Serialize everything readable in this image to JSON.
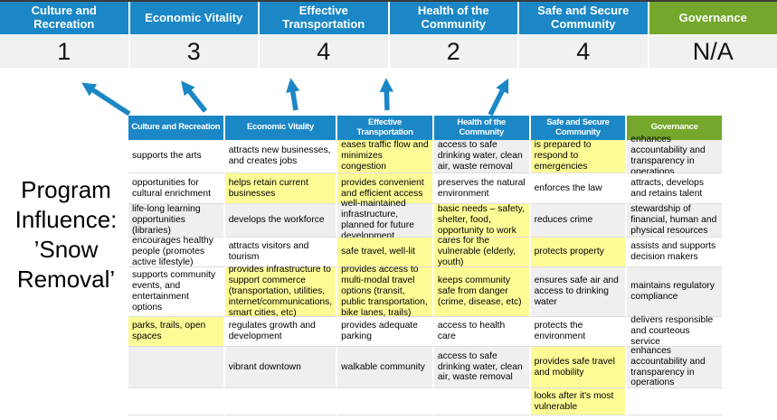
{
  "colors": {
    "header_blue": "#1b87c6",
    "header_green": "#74a72c",
    "highlight_yellow": "#fdfb96",
    "stripe_gray": "#efefef",
    "score_row_bg": "#f1f1f1",
    "arrow_blue": "#1b87c6"
  },
  "slide": {
    "program_label": {
      "full_text": "Program Influence: ’Snow Removal’",
      "lines": [
        "Program",
        "Influence:",
        "’Snow",
        "Removal’"
      ]
    }
  },
  "banner": {
    "columns": [
      {
        "label": "Culture and Recreation",
        "score": "1",
        "color": "blue"
      },
      {
        "label": "Economic Vitality",
        "score": "3",
        "color": "blue"
      },
      {
        "label": "Effective Transportation",
        "score": "4",
        "color": "blue"
      },
      {
        "label": "Health of the Community",
        "score": "2",
        "color": "blue"
      },
      {
        "label": "Safe and Secure Community",
        "score": "4",
        "color": "blue"
      },
      {
        "label": "Governance",
        "score": "N/A",
        "color": "green"
      }
    ]
  },
  "matrix": {
    "headers": [
      {
        "label": "Culture and Recreation",
        "color": "blue"
      },
      {
        "label": "Economic Vitality",
        "color": "blue"
      },
      {
        "label": "Effective Transportation",
        "color": "blue"
      },
      {
        "label": "Health of the Community",
        "color": "blue"
      },
      {
        "label": "Safe and Secure Community",
        "color": "blue"
      },
      {
        "label": "Governance",
        "color": "green"
      }
    ],
    "rows": [
      {
        "cells": [
          {
            "text": "supports the arts",
            "bg": "white"
          },
          {
            "text": "attracts new businesses, and creates jobs",
            "bg": "white"
          },
          {
            "text": "eases traffic flow and minimizes congestion",
            "bg": "yellow"
          },
          {
            "text": "access to safe drinking water, clean air, waste removal",
            "bg": "gray"
          },
          {
            "text": "is prepared to respond to emergencies",
            "bg": "yellow"
          },
          {
            "text": "enhances accountability and transparency in operations",
            "bg": "gray"
          }
        ]
      },
      {
        "cells": [
          {
            "text": "opportunities for cultural enrichment",
            "bg": "white"
          },
          {
            "text": "helps retain current businesses",
            "bg": "yellow"
          },
          {
            "text": "provides convenient and efficient access",
            "bg": "yellow"
          },
          {
            "text": "preserves the natural environment",
            "bg": "white"
          },
          {
            "text": "enforces the law",
            "bg": "white"
          },
          {
            "text": "attracts, develops and retains talent",
            "bg": "white"
          }
        ]
      },
      {
        "cells": [
          {
            "text": "life-long learning opportunities (libraries)",
            "bg": "gray"
          },
          {
            "text": "develops the workforce",
            "bg": "gray"
          },
          {
            "text": "well-maintained infrastructure, planned for future development",
            "bg": "gray"
          },
          {
            "text": "basic needs – safety, shelter, food, opportunity to work",
            "bg": "yellow"
          },
          {
            "text": "reduces crime",
            "bg": "gray"
          },
          {
            "text": "stewardship of financial, human and physical resources",
            "bg": "gray"
          }
        ]
      },
      {
        "cells": [
          {
            "text": "encourages healthy people (promotes active lifestyle)",
            "bg": "white"
          },
          {
            "text": "attracts visitors and tourism",
            "bg": "white"
          },
          {
            "text": "safe travel, well-lit",
            "bg": "yellow"
          },
          {
            "text": "cares for the vulnerable (elderly, youth)",
            "bg": "yellow"
          },
          {
            "text": "protects property",
            "bg": "yellow"
          },
          {
            "text": "assists and supports decision makers",
            "bg": "white"
          }
        ]
      },
      {
        "cells": [
          {
            "text": "supports community events, and entertainment options",
            "bg": "white"
          },
          {
            "text": "provides infrastructure to support commerce (transportation, utilities, internet/communications, smart cities, etc)",
            "bg": "yellow"
          },
          {
            "text": "provides access to multi-modal travel options (transit, public transportation, bike lanes, trails)",
            "bg": "yellow"
          },
          {
            "text": "keeps community safe from danger (crime, disease, etc)",
            "bg": "yellow"
          },
          {
            "text": "ensures safe air and access to drinking water",
            "bg": "gray"
          },
          {
            "text": "maintains regulatory compliance",
            "bg": "gray"
          }
        ]
      },
      {
        "cells": [
          {
            "text": "parks, trails, open spaces",
            "bg": "yellow"
          },
          {
            "text": "regulates growth and development",
            "bg": "white"
          },
          {
            "text": "provides adequate parking",
            "bg": "white"
          },
          {
            "text": "access to health care",
            "bg": "white"
          },
          {
            "text": "protects the environment",
            "bg": "white"
          },
          {
            "text": "delivers responsible and courteous service",
            "bg": "white"
          }
        ]
      },
      {
        "cells": [
          {
            "text": "",
            "bg": "gray"
          },
          {
            "text": "vibrant downtown",
            "bg": "gray"
          },
          {
            "text": "walkable community",
            "bg": "gray"
          },
          {
            "text": "access to safe drinking water, clean air, waste removal",
            "bg": "gray"
          },
          {
            "text": "provides safe travel and mobility",
            "bg": "yellow"
          },
          {
            "text": "enhances accountability and transparency in operations",
            "bg": "gray"
          }
        ]
      },
      {
        "cells": [
          {
            "text": "",
            "bg": "white"
          },
          {
            "text": "",
            "bg": "white"
          },
          {
            "text": "",
            "bg": "white"
          },
          {
            "text": "",
            "bg": "white"
          },
          {
            "text": "looks after it's most vulnerable",
            "bg": "yellow"
          },
          {
            "text": "",
            "bg": "white"
          }
        ]
      }
    ]
  }
}
